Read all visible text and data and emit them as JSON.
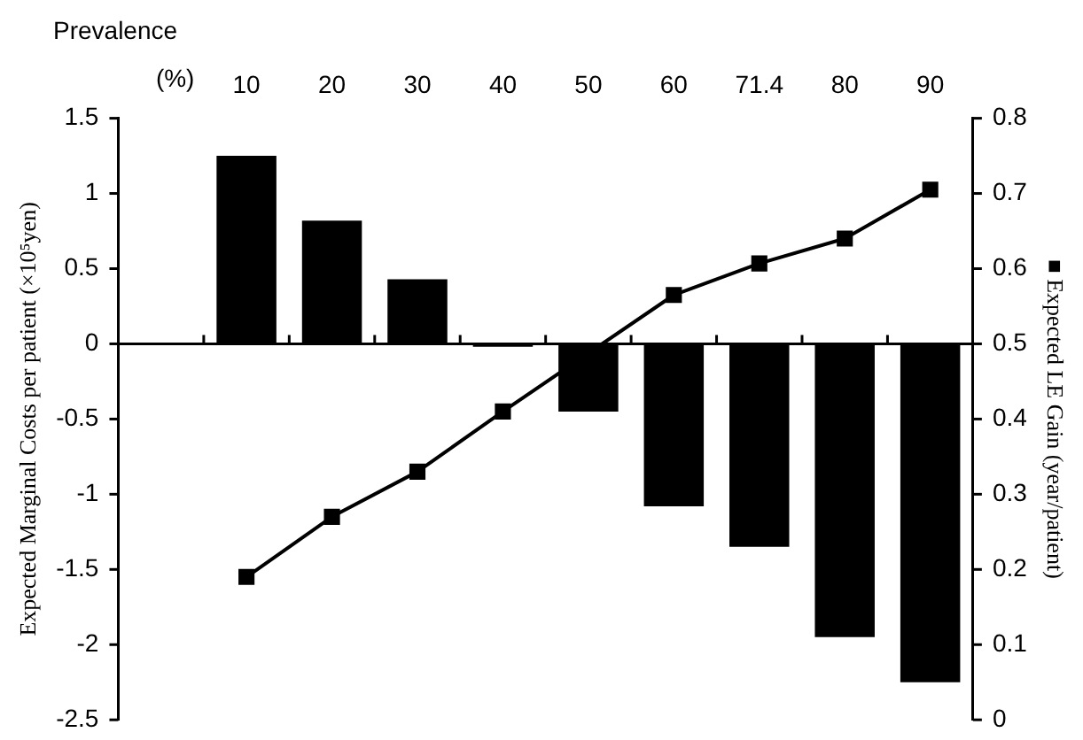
{
  "chart_data": {
    "type": "bar",
    "xlabel": "Prevalence (%)",
    "ylabel": "Expected Marginal Costs per patient (×10⁵yen)",
    "y2label": "■ Expected LE Gain (year/patient)",
    "categories": [
      null,
      "10",
      "20",
      "30",
      "40",
      "50",
      "60",
      "71.4",
      "80",
      "90"
    ],
    "series": [
      {
        "color": "#000000",
        "values": [
          null,
          1.25,
          0.82,
          0.43,
          -0.02,
          -0.45,
          -1.08,
          -1.35,
          -1.95,
          -2.25
        ]
      },
      {
        "type": "line",
        "axis": "y2",
        "color": "#000000",
        "values": [
          null,
          0.19,
          0.27,
          0.33,
          0.41,
          null,
          0.565,
          0.607,
          0.64,
          0.705
        ]
      }
    ],
    "ylim": [
      -2.5,
      1.5
    ],
    "yticks": [
      -2.5,
      -2,
      -1.5,
      -1,
      -0.5,
      0,
      0.5,
      1,
      1.5
    ],
    "y2lim": [
      0,
      0.8
    ],
    "y2ticks": [
      0,
      0.1,
      0.2,
      0.3,
      0.4,
      0.5,
      0.6,
      0.7,
      0.8
    ],
    "marker": "square",
    "line_style": "solid",
    "legend": false
  }
}
